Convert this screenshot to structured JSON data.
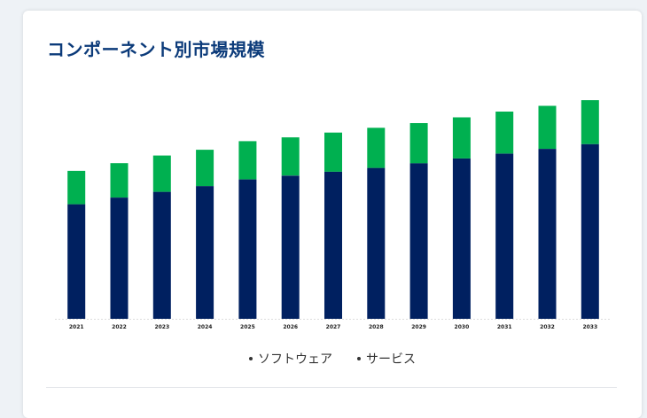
{
  "title": "コンポーネント別市場規模",
  "chart_data": {
    "type": "bar",
    "stacked": true,
    "categories": [
      "2021",
      "2022",
      "2023",
      "2024",
      "2025",
      "2026",
      "2027",
      "2028",
      "2029",
      "2030",
      "2031",
      "2032",
      "2033"
    ],
    "series": [
      {
        "name": "ソフトウェア",
        "color": "#002060",
        "values": [
          120,
          127,
          133,
          139,
          146,
          150,
          154,
          158,
          163,
          168,
          173,
          178,
          183
        ]
      },
      {
        "name": "サービス",
        "color": "#00b050",
        "values": [
          35,
          36,
          38,
          38,
          40,
          40,
          41,
          42,
          42,
          43,
          44,
          45,
          46
        ]
      }
    ],
    "ylim": [
      0,
      230
    ],
    "grid": false,
    "legend": "bottom-center"
  }
}
